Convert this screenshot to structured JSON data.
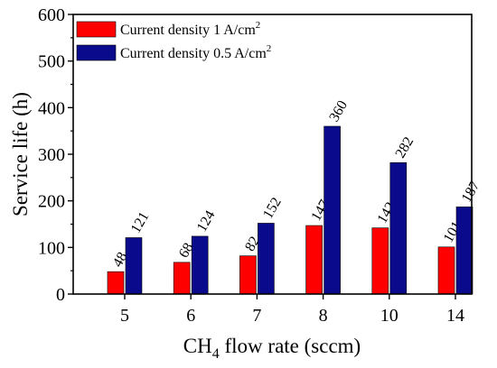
{
  "chart_data": {
    "type": "bar",
    "title": "",
    "xlabel": "CH4 flow rate (sccm)",
    "xlabel_parts": {
      "pre": "CH",
      "sub": "4",
      "post": " flow rate (sccm)"
    },
    "ylabel": "Service life (h)",
    "ylim": [
      0,
      600
    ],
    "yticks": [
      0,
      100,
      200,
      300,
      400,
      500,
      600
    ],
    "categories": [
      "5",
      "6",
      "7",
      "8",
      "10",
      "14"
    ],
    "series": [
      {
        "name": "Current density   1 A/cm2",
        "name_parts": {
          "pre": "Current density   1 A/cm",
          "sup": "2"
        },
        "color": "#ff0000",
        "values": [
          48,
          68,
          82,
          147,
          142,
          101
        ],
        "labels": [
          "48",
          "68",
          "82",
          "147",
          "142",
          "101"
        ]
      },
      {
        "name": "Current density 0.5 A/cm2",
        "name_parts": {
          "pre": "Current density 0.5 A/cm",
          "sup": "2"
        },
        "color": "#0a0a8c",
        "values": [
          121,
          124,
          152,
          360,
          282,
          187
        ],
        "labels": [
          "121",
          "124",
          "152",
          "360",
          "282",
          "187"
        ]
      }
    ],
    "legend_position": "top-left",
    "grid": false
  }
}
